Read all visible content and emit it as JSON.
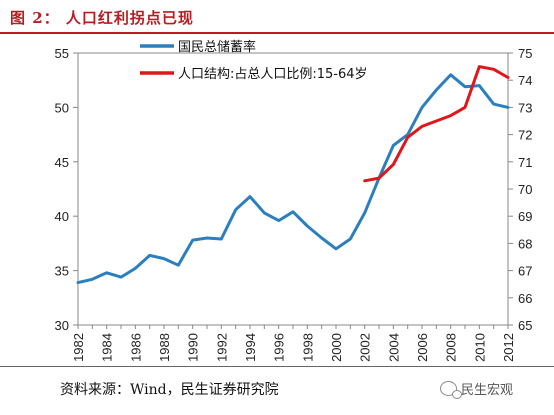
{
  "header": {
    "title": "图 2：  人口红利拐点已现"
  },
  "footer": {
    "source": "资料来源：Wind，民生证券研究院",
    "watermark": "民生宏观",
    "watermark_icon": "chat-bubbles-icon"
  },
  "chart_data": {
    "type": "line",
    "title": "",
    "xlabel": "",
    "ylabel": "",
    "x_ticks": [
      "1982",
      "1984",
      "1986",
      "1988",
      "1990",
      "1992",
      "1994",
      "1996",
      "1998",
      "2000",
      "2002",
      "2004",
      "2006",
      "2008",
      "2010",
      "2012"
    ],
    "ylim_left": [
      30,
      55
    ],
    "ylim_right": [
      65,
      75
    ],
    "yticks_left": [
      30,
      35,
      40,
      45,
      50,
      55
    ],
    "yticks_right": [
      65,
      66,
      67,
      68,
      69,
      70,
      71,
      72,
      73,
      74,
      75
    ],
    "legend_position": "top-center",
    "grid": false,
    "series": [
      {
        "name": "国民总储蓄率",
        "axis": "left",
        "color": "#2b7fbf",
        "x": [
          1982,
          1983,
          1984,
          1985,
          1986,
          1987,
          1988,
          1989,
          1990,
          1991,
          1992,
          1993,
          1994,
          1995,
          1996,
          1997,
          1998,
          1999,
          2000,
          2001,
          2002,
          2003,
          2004,
          2005,
          2006,
          2007,
          2008,
          2009,
          2010,
          2011,
          2012
        ],
        "values": [
          33.9,
          34.2,
          34.8,
          34.4,
          35.2,
          36.4,
          36.1,
          35.5,
          37.8,
          38.0,
          37.9,
          40.6,
          41.8,
          40.3,
          39.6,
          40.4,
          39.1,
          38.0,
          37.0,
          37.9,
          40.3,
          43.5,
          46.5,
          47.5,
          50.0,
          51.6,
          53.0,
          51.9,
          52.0,
          50.3,
          50.0
        ]
      },
      {
        "name": "人口结构:占总人口比例:15-64岁",
        "axis": "right",
        "color": "#e0161b",
        "x": [
          2002,
          2003,
          2004,
          2005,
          2006,
          2007,
          2008,
          2009,
          2010,
          2011,
          2012
        ],
        "values": [
          70.3,
          70.4,
          70.9,
          71.9,
          72.3,
          72.5,
          72.7,
          73.0,
          74.5,
          74.4,
          74.1
        ]
      }
    ]
  }
}
